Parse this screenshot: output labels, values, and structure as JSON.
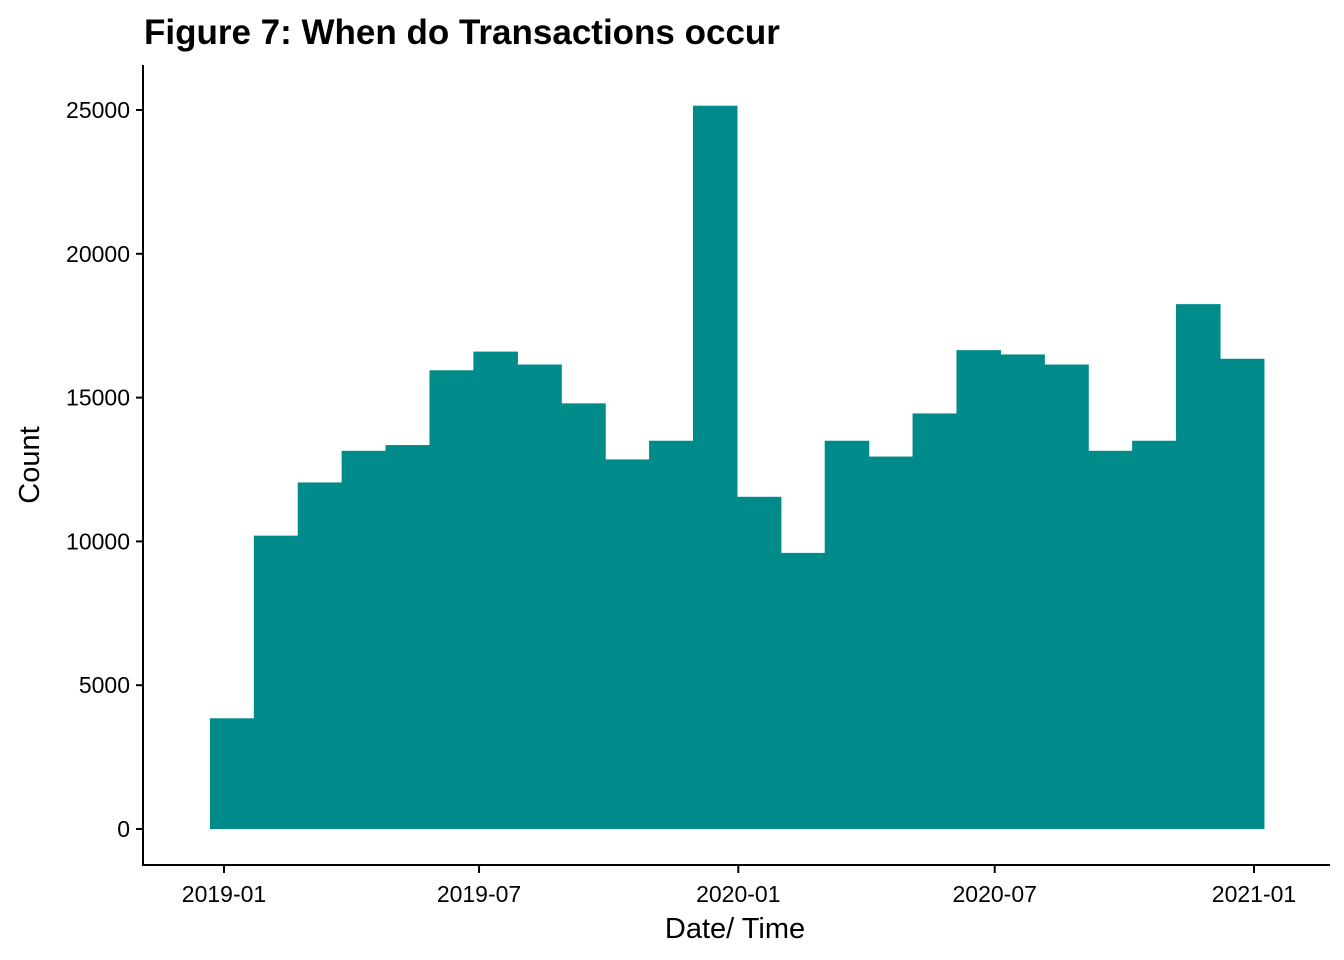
{
  "chart_data": {
    "type": "bar",
    "title": "Figure 7: When do Transactions occur",
    "xlabel": "Date/ Time",
    "ylabel": "Count",
    "x_ticks": [
      "2019-01",
      "2019-07",
      "2020-01",
      "2020-07",
      "2021-01"
    ],
    "y_ticks": [
      "0",
      "5000",
      "10000",
      "15000",
      "20000",
      "25000"
    ],
    "ylim": [
      0,
      26000
    ],
    "xlim": [
      "2018-12-01",
      "2021-01-31"
    ],
    "bin_start": "2018-12-22",
    "bin_end": "2021-01-08",
    "bar_color": "#008B8B",
    "legend": "none",
    "grid": false,
    "values": [
      3850,
      10200,
      12050,
      13150,
      13350,
      15950,
      16600,
      16150,
      14800,
      12850,
      13500,
      25150,
      11550,
      9600,
      13500,
      12950,
      14450,
      16650,
      16500,
      16150,
      13150,
      13500,
      18250,
      16350
    ]
  }
}
